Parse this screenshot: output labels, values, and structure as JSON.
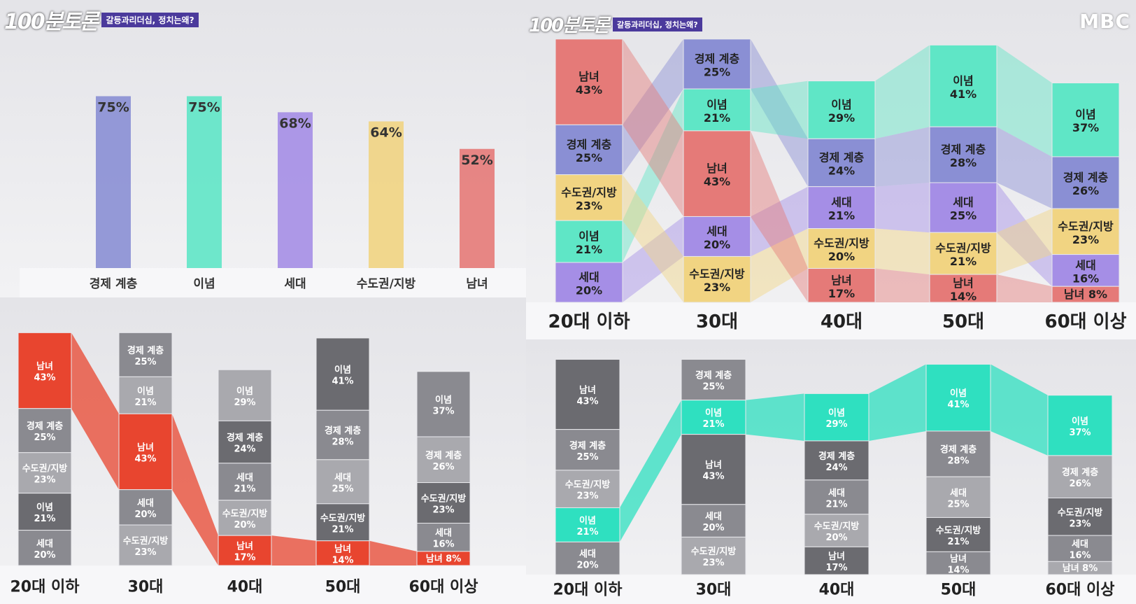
{
  "header": {
    "logo": "100분토론",
    "subtitle": "갈등과리더십, 정치는왜?",
    "broadcaster": "MBC"
  },
  "colors": {
    "경제 계층": "#8a8fd4",
    "이념": "#5fe6c6",
    "세대": "#a58ee6",
    "수도권/지방": "#f1d482",
    "남녀": "#e57a78",
    "남녀_strong": "#e8452f",
    "이념_strong": "#2fe0c0",
    "gray_dark": "#6b6b70",
    "gray_mid": "#8a8a90",
    "gray_light": "#a9a9ae"
  },
  "chart_data": [
    {
      "type": "bar",
      "categories": [
        "경제 계층",
        "이념",
        "세대",
        "수도권/지방",
        "남녀"
      ],
      "values": [
        75,
        75,
        68,
        64,
        52
      ],
      "value_labels": [
        "75%",
        "75%",
        "68%",
        "64%",
        "52%"
      ],
      "ylim": [
        0,
        100
      ]
    },
    {
      "type": "bar",
      "stacked": true,
      "categories": [
        "20대 이하",
        "30대",
        "40대",
        "50대",
        "60대 이상"
      ],
      "groups": [
        [
          {
            "name": "남녀",
            "value": 43
          },
          {
            "name": "경제 계층",
            "value": 25
          },
          {
            "name": "수도권/지방",
            "value": 23
          },
          {
            "name": "이념",
            "value": 21
          },
          {
            "name": "세대",
            "value": 20
          }
        ],
        [
          {
            "name": "경제 계층",
            "value": 25
          },
          {
            "name": "이념",
            "value": 21
          },
          {
            "name": "남녀",
            "value": 43
          },
          {
            "name": "세대",
            "value": 20
          },
          {
            "name": "수도권/지방",
            "value": 23
          }
        ],
        [
          {
            "name": "이념",
            "value": 29
          },
          {
            "name": "경제 계층",
            "value": 24
          },
          {
            "name": "세대",
            "value": 21
          },
          {
            "name": "수도권/지방",
            "value": 20
          },
          {
            "name": "남녀",
            "value": 17
          }
        ],
        [
          {
            "name": "이념",
            "value": 41
          },
          {
            "name": "경제 계층",
            "value": 28
          },
          {
            "name": "세대",
            "value": 25
          },
          {
            "name": "수도권/지방",
            "value": 21
          },
          {
            "name": "남녀",
            "value": 14
          }
        ],
        [
          {
            "name": "이념",
            "value": 37
          },
          {
            "name": "경제 계층",
            "value": 26
          },
          {
            "name": "수도권/지방",
            "value": 23
          },
          {
            "name": "세대",
            "value": 16
          },
          {
            "name": "남녀",
            "value": 8
          }
        ]
      ]
    }
  ]
}
